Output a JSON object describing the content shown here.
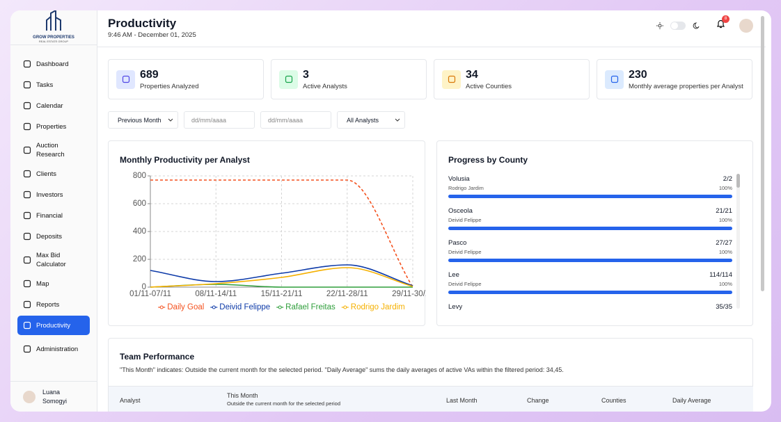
{
  "sidebar": {
    "logo": {
      "name": "GROW PROPERTIES",
      "tagline": "REAL ESTATE GROUP"
    },
    "nav": [
      {
        "label": "Dashboard"
      },
      {
        "label": "Tasks"
      },
      {
        "label": "Calendar"
      },
      {
        "label": "Properties"
      },
      {
        "label": "Auction Research"
      },
      {
        "label": "Clients"
      },
      {
        "label": "Investors"
      },
      {
        "label": "Financial"
      },
      {
        "label": "Deposits"
      },
      {
        "label": "Max Bid Calculator"
      },
      {
        "label": "Map"
      },
      {
        "label": "Reports"
      },
      {
        "label": "Productivity",
        "active": true
      },
      {
        "label": "Administration"
      }
    ],
    "user": "Luana Somogyi"
  },
  "header": {
    "title": "Productivity",
    "subtitle": "9:46 AM - December 01, 2025",
    "notifications": "8"
  },
  "stats": [
    {
      "value": "689",
      "label": "Properties Analyzed",
      "color": "#e0e7ff",
      "icon_color": "#4f46e5"
    },
    {
      "value": "3",
      "label": "Active Analysts",
      "color": "#dcfce7",
      "icon_color": "#16a34a"
    },
    {
      "value": "34",
      "label": "Active Counties",
      "color": "#fef3c7",
      "icon_color": "#d97706"
    },
    {
      "value": "230",
      "label": "Monthly average properties per Analyst",
      "color": "#dbeafe",
      "icon_color": "#2563eb"
    }
  ],
  "filters": [
    "Previous Month",
    "dd/mm/aaaa",
    "dd/mm/aaaa",
    "All Analysts"
  ],
  "productivity_chart": {
    "type": "line",
    "title": "Monthly Productivity per Analyst",
    "categories": [
      "01/11-07/11",
      "08/11-14/11",
      "15/11-21/11",
      "22/11-28/11",
      "29/11-30/11"
    ],
    "series": [
      {
        "name": "Daily Goal",
        "color": "#f4511e",
        "style": "dashed",
        "values": [
          770,
          770,
          770,
          770,
          0
        ]
      },
      {
        "name": "Deivid Felippe",
        "color": "#0d3aa8",
        "values": [
          120,
          40,
          100,
          160,
          10
        ]
      },
      {
        "name": "Rafael Freitas",
        "color": "#2e9e3a",
        "values": [
          0,
          20,
          0,
          0,
          0
        ]
      },
      {
        "name": "Rodrigo Jardim",
        "color": "#f5b000",
        "values": [
          0,
          25,
          70,
          140,
          5
        ]
      }
    ],
    "ylim": [
      0,
      800
    ],
    "yticks": [
      0,
      200,
      400,
      600,
      800
    ],
    "grid": true
  },
  "progress": {
    "title": "Progress by County",
    "items": [
      {
        "county": "Volusia",
        "analyst": "Rodrigo Jardim",
        "count": "2/2",
        "percent": {
          "value": 100,
          "label": "100%"
        }
      },
      {
        "county": "Osceola",
        "analyst": "Deivid Felippe",
        "count": "21/21",
        "percent": {
          "value": 100,
          "label": "100%"
        }
      },
      {
        "county": "Pasco",
        "analyst": "Deivid Felippe",
        "count": "27/27",
        "percent": {
          "value": 100,
          "label": "100%"
        }
      },
      {
        "county": "Lee",
        "analyst": "Deivid Felippe",
        "count": "114/114",
        "percent": {
          "value": 100,
          "label": "100%"
        }
      },
      {
        "county": "Levy",
        "count": "35/35"
      }
    ]
  },
  "team": {
    "title": "Team Performance",
    "description": "\"This Month\" indicates: Outside the current month for the selected period. \"Daily Average\" sums the daily averages of active VAs within the filtered period: 34,45.",
    "columns": [
      {
        "label": "Analyst"
      },
      {
        "label": "This Month",
        "note": "Outside the current month for the selected period"
      },
      {
        "label": "Last Month"
      },
      {
        "label": "Change"
      },
      {
        "label": "Counties"
      },
      {
        "label": "Daily Average"
      }
    ]
  }
}
